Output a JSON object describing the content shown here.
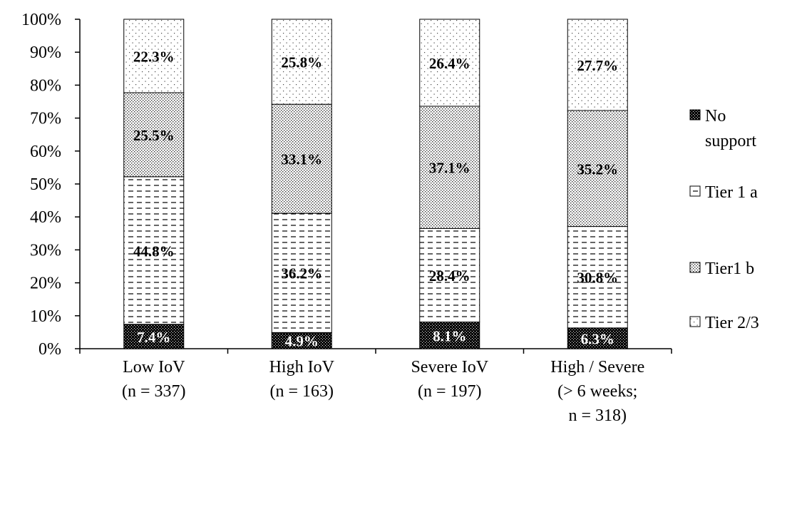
{
  "chart_data": {
    "type": "bar",
    "stacked": true,
    "categories": [
      [
        "Low IoV",
        "(n = 337)"
      ],
      [
        "High IoV",
        "(n = 163)"
      ],
      [
        "Severe IoV",
        "(n = 197)"
      ],
      [
        "High / Severe",
        "(> 6 weeks;",
        "n = 318)"
      ]
    ],
    "series": [
      {
        "name": "No support",
        "legend_lines": [
          "No",
          "support"
        ],
        "pattern": "black-dots",
        "values": [
          7.4,
          4.9,
          8.1,
          6.3
        ],
        "labels": [
          "7.4%",
          "4.9%",
          "8.1%",
          "6.3%"
        ]
      },
      {
        "name": "Tier 1 a",
        "legend_lines": [
          "Tier 1 a"
        ],
        "pattern": "dashes",
        "values": [
          44.8,
          36.2,
          28.4,
          30.8
        ],
        "labels": [
          "44.8%",
          "36.2%",
          "28.4%",
          "30.8%"
        ]
      },
      {
        "name": "Tier1 b",
        "legend_lines": [
          "Tier1 b"
        ],
        "pattern": "dense-dots",
        "values": [
          25.5,
          33.1,
          37.1,
          35.2
        ],
        "labels": [
          "25.5%",
          "33.1%",
          "37.1%",
          "35.2%"
        ]
      },
      {
        "name": "Tier 2/3",
        "legend_lines": [
          "Tier 2/3"
        ],
        "pattern": "sparse-dots",
        "values": [
          22.3,
          25.8,
          26.4,
          27.7
        ],
        "labels": [
          "22.3%",
          "25.8%",
          "26.4%",
          "27.7%"
        ]
      }
    ],
    "y_ticks": [
      "0%",
      "10%",
      "20%",
      "30%",
      "40%",
      "50%",
      "60%",
      "70%",
      "80%",
      "90%",
      "100%"
    ],
    "ylim": [
      0,
      100
    ],
    "grid": false,
    "legend_position": "right"
  }
}
